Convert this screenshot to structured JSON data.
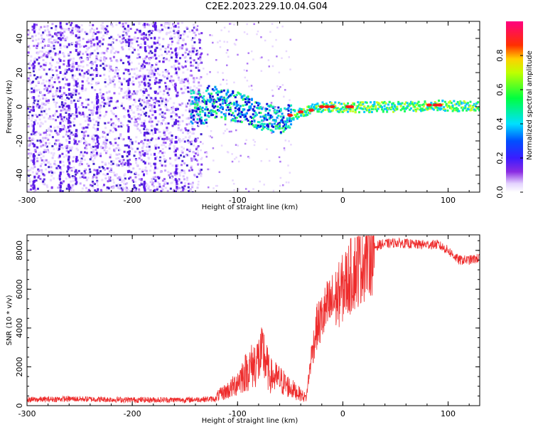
{
  "page_title": "C2E2.2023.229.10.04.G04",
  "colors": {
    "snr_line": "#ee2c2c",
    "spec_track": "#1de9b6",
    "spec_noise": "#7a1cf0"
  },
  "chart_data": [
    {
      "type": "heatmap",
      "title": "C2E2.2023.229.10.04.G04",
      "xlabel": "Height of straight line (km)",
      "ylabel": "Frequency (Hz)",
      "xlim": [
        -300,
        130
      ],
      "ylim": [
        -50,
        50
      ],
      "xticks": [
        -300,
        -200,
        -100,
        0,
        100
      ],
      "yticks": [
        -40,
        -20,
        0,
        20,
        40
      ],
      "colorbar": {
        "label": "Normalized spectral amplitude",
        "range": [
          0.0,
          1.0
        ],
        "ticks": [
          0.0,
          0.2,
          0.4,
          0.6,
          0.8
        ],
        "colormap": "white-purple-blue-cyan-green-yellow-red-magenta"
      },
      "description_points": [
        {
          "x": -130,
          "y": 4
        },
        {
          "x": -100,
          "y": 0
        },
        {
          "x": -80,
          "y": -5
        },
        {
          "x": -60,
          "y": -8
        },
        {
          "x": -50,
          "y": -5
        },
        {
          "x": -40,
          "y": -3
        },
        {
          "x": -20,
          "y": 0
        },
        {
          "x": 0,
          "y": 0
        },
        {
          "x": 50,
          "y": 0
        },
        {
          "x": 90,
          "y": 1
        },
        {
          "x": 130,
          "y": 0
        }
      ]
    },
    {
      "type": "line",
      "xlabel": "Height of straight line (km)",
      "ylabel": "SNR (10 * v/v)",
      "xlim": [
        -300,
        130
      ],
      "ylim": [
        0,
        8800
      ],
      "xticks": [
        -300,
        -200,
        -100,
        0,
        100
      ],
      "yticks": [
        0,
        2000,
        4000,
        6000,
        8000
      ],
      "series": [
        {
          "x": [
            -300,
            -260,
            -200,
            -150,
            -120,
            -105,
            -95,
            -85,
            -75,
            -70,
            -60,
            -50,
            -35,
            -30,
            -25,
            -15,
            -5,
            5,
            15,
            25,
            35,
            50,
            70,
            90,
            100,
            110,
            120,
            130
          ],
          "values": [
            300,
            350,
            300,
            300,
            350,
            700,
            1200,
            1600,
            2000,
            1200,
            1000,
            700,
            300,
            2500,
            4000,
            5000,
            5600,
            6500,
            7200,
            8000,
            8300,
            8400,
            8300,
            8300,
            8000,
            7500,
            7500,
            7600
          ]
        }
      ]
    }
  ]
}
